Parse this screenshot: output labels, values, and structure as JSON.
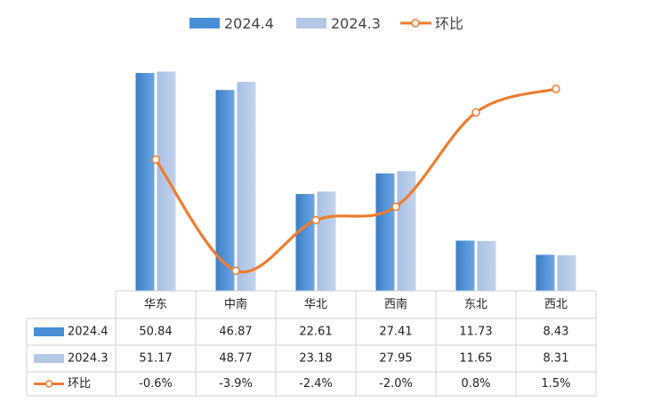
{
  "chart_data": {
    "type": "bar",
    "categories": [
      "华东",
      "中南",
      "华北",
      "西南",
      "东北",
      "西北"
    ],
    "series": [
      {
        "name": "2024.4",
        "type": "bar",
        "color": "#4a8fd6",
        "values": [
          50.84,
          46.87,
          22.61,
          27.41,
          11.73,
          8.43
        ],
        "labels": [
          "50.84",
          "46.87",
          "22.61",
          "27.41",
          "11.73",
          "8.43"
        ]
      },
      {
        "name": "2024.3",
        "type": "bar",
        "color": "#b4c7e7",
        "values": [
          51.17,
          48.77,
          23.18,
          27.95,
          11.65,
          8.31
        ],
        "labels": [
          "51.17",
          "48.77",
          "23.18",
          "27.95",
          "11.65",
          "8.31"
        ]
      },
      {
        "name": "环比",
        "type": "line",
        "color": "#ed7d31",
        "axis": "secondary",
        "values": [
          -0.6,
          -3.9,
          -2.4,
          -2.0,
          0.8,
          1.5
        ],
        "labels": [
          "-0.6%",
          "-3.9%",
          "-2.4%",
          "-2.0%",
          "0.8%",
          "1.5%"
        ]
      }
    ],
    "ylim": [
      0,
      55
    ],
    "y2lim": [
      -4.5,
      2.5
    ],
    "legend_position": "top",
    "data_table": true,
    "grid": false
  }
}
